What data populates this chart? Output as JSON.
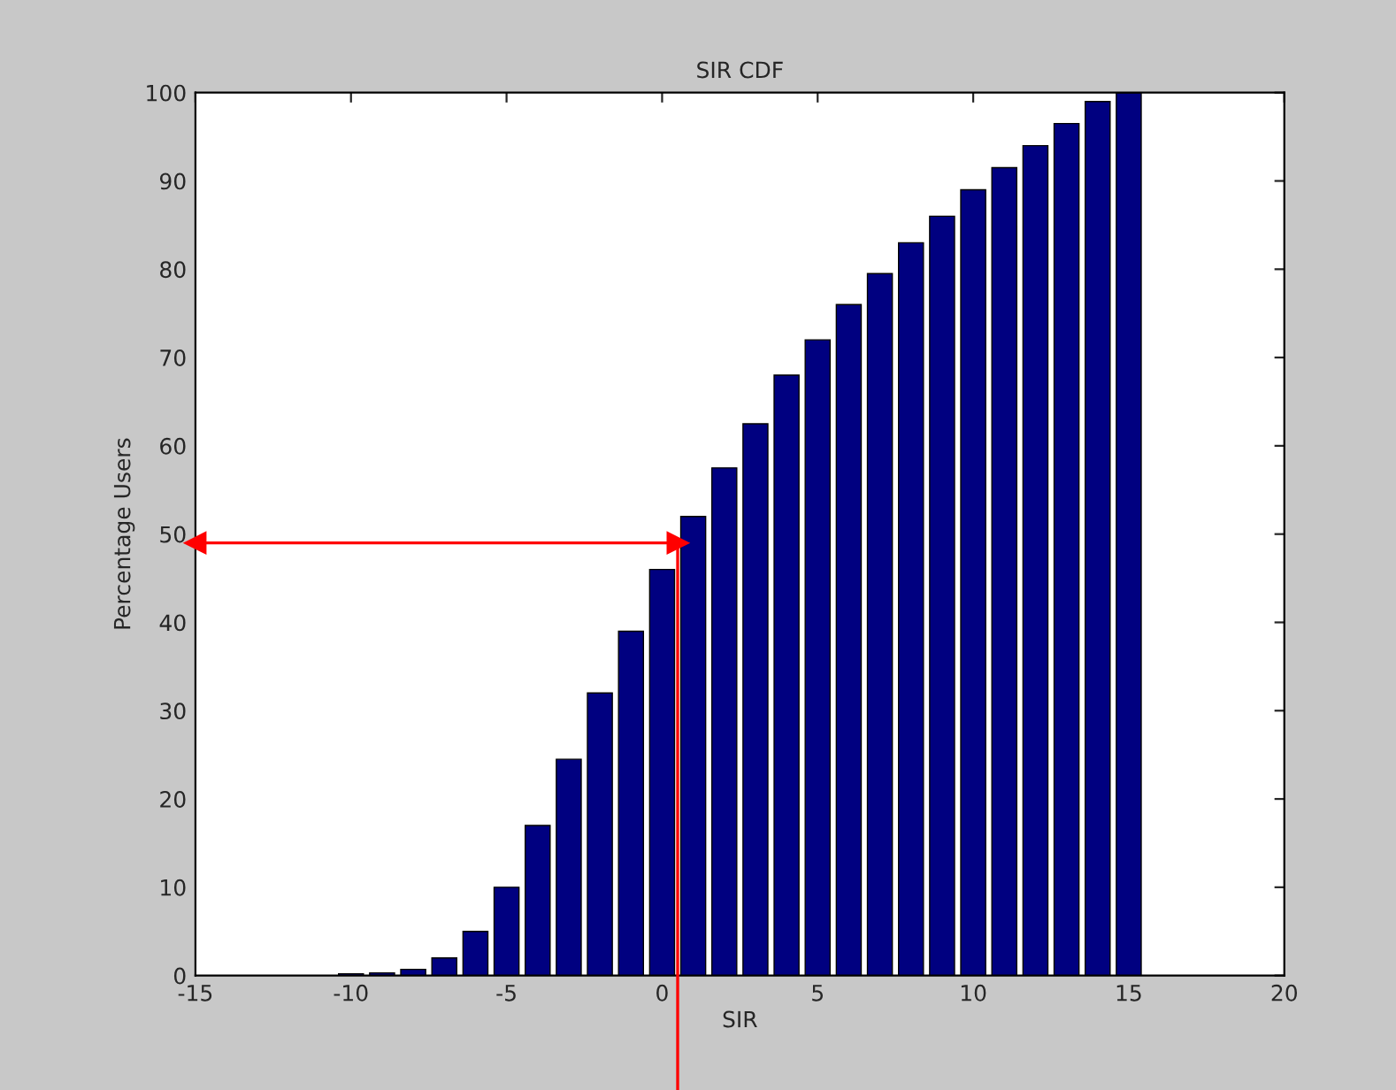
{
  "chart_data": {
    "type": "bar",
    "title": "SIR CDF",
    "xlabel": "SIR",
    "ylabel": "Percentage Users",
    "x": [
      -10,
      -9,
      -8,
      -7,
      -6,
      -5,
      -4,
      -3,
      -2,
      -1,
      0,
      1,
      2,
      3,
      4,
      5,
      6,
      7,
      8,
      9,
      10,
      11,
      12,
      13,
      14,
      15
    ],
    "values": [
      0.2,
      0.3,
      0.7,
      2,
      5,
      10,
      17,
      24.5,
      32,
      39,
      46,
      52,
      57.5,
      62.5,
      68,
      72,
      76,
      79.5,
      83,
      86,
      89,
      91.5,
      94,
      96.5,
      99,
      100
    ],
    "color": "#000080",
    "xlim": [
      -15,
      20
    ],
    "xticks": [
      -15,
      -10,
      -5,
      0,
      5,
      10,
      15,
      20
    ],
    "ylim": [
      0,
      100
    ],
    "yticks": [
      0,
      10,
      20,
      30,
      40,
      50,
      60,
      70,
      80,
      90,
      100
    ],
    "ref_lines": [
      {
        "axis": "y",
        "value": 49,
        "color": "#ff0000"
      },
      {
        "axis": "x",
        "value": 0.5,
        "color": "#ff0000"
      }
    ]
  }
}
